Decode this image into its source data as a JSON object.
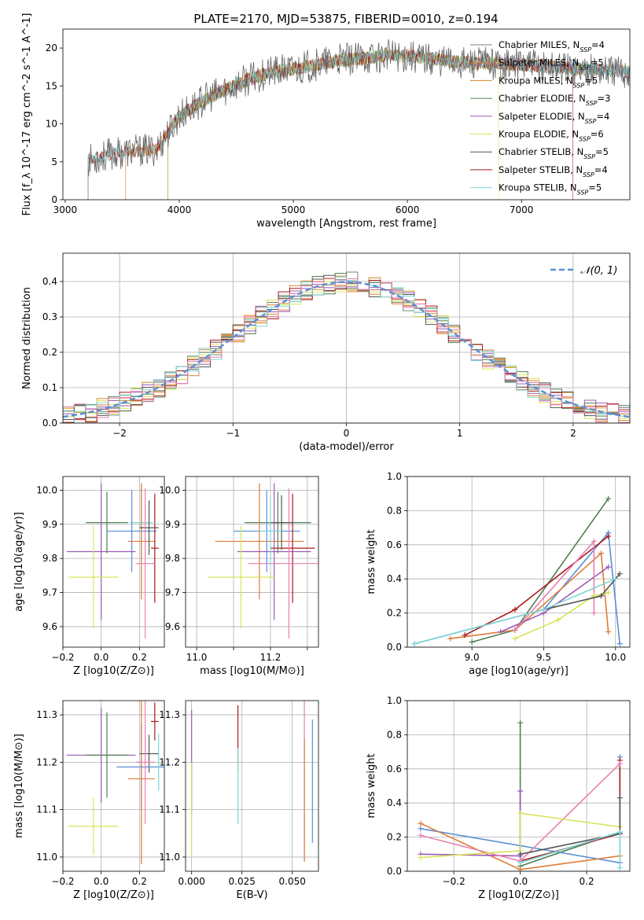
{
  "title": "PLATE=2170, MJD=53875, FIBERID=0010, z=0.194",
  "colors": [
    "#6b8e6b",
    "#e07b39",
    "#d38a1f",
    "#4f7f4f",
    "#9b59b6",
    "#d9e35a",
    "#6e6e6e",
    "#a81c1c",
    "#7fd6d6"
  ],
  "chart_data": [
    {
      "id": "spectrum",
      "type": "line",
      "xlabel": "wavelength [Angstrom, rest frame]",
      "ylabel": "Flux [f_λ 10^-17 erg cm^-2 s^-1 A^-1]",
      "xlim": [
        2980,
        7950
      ],
      "ylim": [
        0,
        22.5
      ],
      "xticks": [
        3000,
        4000,
        5000,
        6000,
        7000
      ],
      "yticks": [
        0,
        5,
        10,
        15,
        20
      ],
      "grid": false,
      "legend": "upper right",
      "series": [
        {
          "name": "Chabrier MILES, N_SSP=4",
          "color": "#6e8a6e"
        },
        {
          "name": "Salpeter MILES, N_SSP=5",
          "color": "#e07b39"
        },
        {
          "name": "Kroupa MILES, N_SSP=5",
          "color": "#d38a1f"
        },
        {
          "name": "Chabrier ELODIE, N_SSP=3",
          "color": "#4f7f4f"
        },
        {
          "name": "Salpeter ELODIE, N_SSP=4",
          "color": "#9b59b6"
        },
        {
          "name": "Kroupa ELODIE, N_SSP=6",
          "color": "#d9e35a"
        },
        {
          "name": "Chabrier STELIB, N_SSP=5",
          "color": "#555555"
        },
        {
          "name": "Salpeter STELIB, N_SSP=4",
          "color": "#a81c1c"
        },
        {
          "name": "Kroupa STELIB, N_SSP=5",
          "color": "#7fd6d6"
        }
      ],
      "continuum": {
        "x": [
          3200,
          3400,
          3600,
          3800,
          4000,
          4200,
          4400,
          4600,
          4800,
          5000,
          5200,
          5400,
          5600,
          5800,
          6000,
          6200,
          6400,
          6600,
          6800,
          7000,
          7200,
          7400,
          7600,
          7800,
          7950
        ],
        "y": [
          5.2,
          6.0,
          6.4,
          6.6,
          11.0,
          13.0,
          14.5,
          15.8,
          16.8,
          17.2,
          17.8,
          18.4,
          18.6,
          19.0,
          19.0,
          18.6,
          18.2,
          18.0,
          18.0,
          17.8,
          17.6,
          17.4,
          17.2,
          17.0,
          16.8
        ]
      },
      "series_start": [
        3200,
        3530,
        3530,
        3900,
        3900,
        3900,
        3200,
        3200,
        3200
      ],
      "series_end": [
        7950,
        7950,
        7950,
        7950,
        7950,
        6800,
        7950,
        7450,
        7950
      ]
    },
    {
      "id": "residual_hist",
      "type": "line",
      "xlabel": "(data-model)/error",
      "ylabel": "Normed distribution",
      "xlim": [
        -2.5,
        2.5
      ],
      "ylim": [
        0,
        0.48
      ],
      "xticks": [
        -2,
        -1,
        0,
        1,
        2
      ],
      "yticks": [
        0.0,
        0.1,
        0.2,
        0.3,
        0.4
      ],
      "grid": true,
      "legend": "upper right",
      "reference": {
        "name": "𝒩(0, 1)",
        "color": "#5b8fd6"
      }
    },
    {
      "id": "age_vs_Z",
      "type": "scatter",
      "xlabel": "Z [log10(Z/Z⊙)]",
      "ylabel": "age  [log10(age/yr)]",
      "xlim": [
        -0.2,
        0.33
      ],
      "ylim": [
        9.54,
        10.04
      ],
      "xticks": [
        -0.2,
        0.0,
        0.2
      ],
      "yticks": [
        9.6,
        9.7,
        9.8,
        9.9,
        10.0
      ],
      "grid": true,
      "points": [
        {
          "x": 0.03,
          "y": 9.905,
          "xerr": 0.11,
          "yerr": 0.09,
          "color": "#4f7f4f"
        },
        {
          "x": 0.21,
          "y": 9.905,
          "xerr": 0.06,
          "yerr": 0.11,
          "color": "#7fd6d6"
        },
        {
          "x": 0.16,
          "y": 9.88,
          "xerr": 0.13,
          "yerr": 0.12,
          "color": "#5b8fd6"
        },
        {
          "x": 0.21,
          "y": 9.85,
          "xerr": 0.07,
          "yerr": 0.17,
          "color": "#e07b39"
        },
        {
          "x": 0.25,
          "y": 9.89,
          "xerr": 0.05,
          "yerr": 0.08,
          "color": "#555555"
        },
        {
          "x": 0.28,
          "y": 9.83,
          "xerr": 0.02,
          "yerr": 0.16,
          "color": "#a81c1c"
        },
        {
          "x": 0.0,
          "y": 9.82,
          "xerr": 0.18,
          "yerr": 0.2,
          "color": "#9b59b6"
        },
        {
          "x": 0.23,
          "y": 9.785,
          "xerr": 0.05,
          "yerr": 0.22,
          "color": "#e87fb0"
        },
        {
          "x": -0.04,
          "y": 9.745,
          "xerr": 0.13,
          "yerr": 0.15,
          "color": "#d9e35a"
        }
      ]
    },
    {
      "id": "age_vs_mass",
      "type": "scatter",
      "xlabel": "mass [log10(M/M⊙)]",
      "ylabel": "",
      "xlim": [
        10.97,
        11.33
      ],
      "ylim": [
        9.54,
        10.04
      ],
      "xticks": [
        11.0,
        11.1,
        11.2,
        11.3
      ],
      "xticklabels": [
        "11.0",
        "",
        "11.2",
        ""
      ],
      "yticks": [
        9.6,
        9.7,
        9.8,
        9.9,
        10.0
      ],
      "grid": true,
      "points": [
        {
          "x": 11.22,
          "y": 9.905,
          "xerr": 0.09,
          "yerr": 0.09,
          "color": "#4f7f4f"
        },
        {
          "x": 11.19,
          "y": 9.88,
          "xerr": 0.09,
          "yerr": 0.12,
          "color": "#5b8fd6"
        },
        {
          "x": 11.17,
          "y": 9.85,
          "xerr": 0.12,
          "yerr": 0.17,
          "color": "#e07b39"
        },
        {
          "x": 11.26,
          "y": 9.83,
          "xerr": 0.06,
          "yerr": 0.16,
          "color": "#a81c1c"
        },
        {
          "x": 11.21,
          "y": 9.82,
          "xerr": 0.1,
          "yerr": 0.2,
          "color": "#9b59b6"
        },
        {
          "x": 11.25,
          "y": 9.785,
          "xerr": 0.11,
          "yerr": 0.22,
          "color": "#e87fb0"
        },
        {
          "x": 11.12,
          "y": 9.745,
          "xerr": 0.09,
          "yerr": 0.15,
          "color": "#d9e35a"
        },
        {
          "x": 11.23,
          "y": 9.905,
          "xerr": 0.03,
          "yerr": 0.08,
          "color": "#555555"
        },
        {
          "x": 11.2,
          "y": 9.88,
          "xerr": 0.03,
          "yerr": 0.1,
          "color": "#7fd6d6"
        }
      ]
    },
    {
      "id": "weight_vs_age",
      "type": "line",
      "xlabel": "age  [log10(age/yr)]",
      "ylabel": "mass weight",
      "xlim": [
        8.55,
        10.1
      ],
      "ylim": [
        0,
        1.0
      ],
      "xticks": [
        9.0,
        9.5,
        10.0
      ],
      "yticks": [
        0.0,
        0.2,
        0.4,
        0.6,
        0.8,
        1.0
      ],
      "grid": true,
      "series": [
        {
          "color": "#4f7f4f",
          "x": [
            9.0,
            9.3,
            9.95
          ],
          "y": [
            0.03,
            0.1,
            0.87
          ]
        },
        {
          "color": "#5b8fd6",
          "x": [
            8.6,
            9.5,
            9.95,
            10.03
          ],
          "y": [
            0.02,
            0.22,
            0.67,
            0.02
          ]
        },
        {
          "color": "#e07b39",
          "x": [
            8.85,
            9.3,
            9.9,
            9.95
          ],
          "y": [
            0.05,
            0.1,
            0.55,
            0.09
          ]
        },
        {
          "color": "#a81c1c",
          "x": [
            8.95,
            9.3,
            9.95
          ],
          "y": [
            0.07,
            0.22,
            0.65
          ]
        },
        {
          "color": "#9b59b6",
          "x": [
            9.2,
            9.5,
            9.95
          ],
          "y": [
            0.09,
            0.2,
            0.47
          ]
        },
        {
          "color": "#e87fb0",
          "x": [
            9.3,
            9.85,
            9.85
          ],
          "y": [
            0.1,
            0.62,
            0.2
          ]
        },
        {
          "color": "#d9e35a",
          "x": [
            9.3,
            9.6,
            9.85,
            9.95
          ],
          "y": [
            0.05,
            0.16,
            0.3,
            0.32
          ]
        },
        {
          "color": "#555555",
          "x": [
            9.5,
            9.9,
            10.03
          ],
          "y": [
            0.22,
            0.3,
            0.43
          ]
        },
        {
          "color": "#7fd6d6",
          "x": [
            8.6,
            9.5,
            10.0
          ],
          "y": [
            0.02,
            0.22,
            0.4
          ]
        }
      ]
    },
    {
      "id": "mass_vs_Z",
      "type": "scatter",
      "xlabel": "Z [log10(Z/Z⊙)]",
      "ylabel": "mass [log10(M/M⊙)]",
      "xlim": [
        -0.2,
        0.33
      ],
      "ylim": [
        10.97,
        11.33
      ],
      "xticks": [
        -0.2,
        0.0,
        0.2
      ],
      "yticks": [
        11.0,
        11.1,
        11.2,
        11.3
      ],
      "grid": true,
      "points": [
        {
          "x": 0.0,
          "y": 11.215,
          "xerr": 0.18,
          "yerr": 0.1,
          "color": "#9b59b6"
        },
        {
          "x": 0.03,
          "y": 11.215,
          "xerr": 0.11,
          "yerr": 0.09,
          "color": "#4f7f4f"
        },
        {
          "x": 0.25,
          "y": 11.218,
          "xerr": 0.05,
          "yerr": 0.04,
          "color": "#555555"
        },
        {
          "x": 0.21,
          "y": 11.19,
          "xerr": 0.13,
          "yerr": 0.09,
          "color": "#5b8fd6"
        },
        {
          "x": 0.21,
          "y": 11.165,
          "xerr": 0.07,
          "yerr": 0.18,
          "color": "#e07b39"
        },
        {
          "x": 0.28,
          "y": 11.286,
          "xerr": 0.02,
          "yerr": 0.04,
          "color": "#a81c1c"
        },
        {
          "x": 0.23,
          "y": 11.2,
          "xerr": 0.05,
          "yerr": 0.13,
          "color": "#e87fb0"
        },
        {
          "x": 0.3,
          "y": 11.2,
          "xerr": 0.0,
          "yerr": 0.06,
          "color": "#7fd6d6"
        },
        {
          "x": -0.04,
          "y": 11.065,
          "xerr": 0.13,
          "yerr": 0.06,
          "color": "#d9e35a"
        }
      ]
    },
    {
      "id": "mass_vs_ebv",
      "type": "scatter",
      "xlabel": "E(B-V)",
      "ylabel": "",
      "xlim": [
        -0.003,
        0.063
      ],
      "ylim": [
        10.97,
        11.33
      ],
      "xticks": [
        0.0,
        0.025,
        0.05
      ],
      "xticklabels": [
        "0.000",
        "0.025",
        "0.050"
      ],
      "yticks": [
        11.0,
        11.1,
        11.2,
        11.3
      ],
      "grid": true,
      "points": [
        {
          "x": 0.0,
          "y": 11.2,
          "xerr": 0,
          "yerr": 0.11,
          "color": "#9b59b6"
        },
        {
          "x": 0.0,
          "y": 11.1,
          "xerr": 0,
          "yerr": 0.1,
          "color": "#d9e35a"
        },
        {
          "x": 0.023,
          "y": 11.25,
          "xerr": 0,
          "yerr": 0.07,
          "color": "#a81c1c"
        },
        {
          "x": 0.023,
          "y": 11.15,
          "xerr": 0,
          "yerr": 0.08,
          "color": "#7fd6d6"
        },
        {
          "x": 0.056,
          "y": 11.16,
          "xerr": 0,
          "yerr": 0.17,
          "color": "#e87fb0"
        },
        {
          "x": 0.056,
          "y": 11.12,
          "xerr": 0,
          "yerr": 0.13,
          "color": "#e07b39"
        },
        {
          "x": 0.06,
          "y": 11.16,
          "xerr": 0,
          "yerr": 0.13,
          "color": "#5b8fd6"
        }
      ]
    },
    {
      "id": "weight_vs_Z",
      "type": "line",
      "xlabel": "Z [log10(Z/Z⊙)]",
      "ylabel": "mass weight",
      "xlim": [
        -0.34,
        0.33
      ],
      "ylim": [
        0,
        1.0
      ],
      "xticks": [
        -0.2,
        0.0,
        0.2
      ],
      "yticks": [
        0.0,
        0.2,
        0.4,
        0.6,
        0.8,
        1.0
      ],
      "grid": true,
      "series": [
        {
          "color": "#4f7f4f",
          "x": [
            0.0,
            0.0,
            0.3
          ],
          "y": [
            0.87,
            0.03,
            0.23
          ]
        },
        {
          "color": "#5b8fd6",
          "x": [
            -0.3,
            0.0,
            0.3,
            0.3
          ],
          "y": [
            0.25,
            0.15,
            0.05,
            0.67
          ]
        },
        {
          "color": "#e07b39",
          "x": [
            -0.3,
            0.0,
            0.3
          ],
          "y": [
            0.28,
            0.01,
            0.09
          ]
        },
        {
          "color": "#a81c1c",
          "x": [
            0.0,
            0.3,
            0.3
          ],
          "y": [
            0.06,
            0.22,
            0.65
          ]
        },
        {
          "color": "#9b59b6",
          "x": [
            -0.3,
            0.0,
            0.0
          ],
          "y": [
            0.1,
            0.09,
            0.47
          ]
        },
        {
          "color": "#e87fb0",
          "x": [
            -0.3,
            0.0,
            0.3
          ],
          "y": [
            0.21,
            0.06,
            0.63
          ]
        },
        {
          "color": "#d9e35a",
          "x": [
            -0.3,
            0.0,
            0.0,
            0.3
          ],
          "y": [
            0.08,
            0.12,
            0.34,
            0.26
          ]
        },
        {
          "color": "#555555",
          "x": [
            0.0,
            0.3,
            0.3
          ],
          "y": [
            0.1,
            0.22,
            0.43
          ]
        },
        {
          "color": "#7fd6d6",
          "x": [
            0.0,
            0.3,
            0.3
          ],
          "y": [
            0.05,
            0.23,
            0.02
          ]
        }
      ]
    }
  ]
}
